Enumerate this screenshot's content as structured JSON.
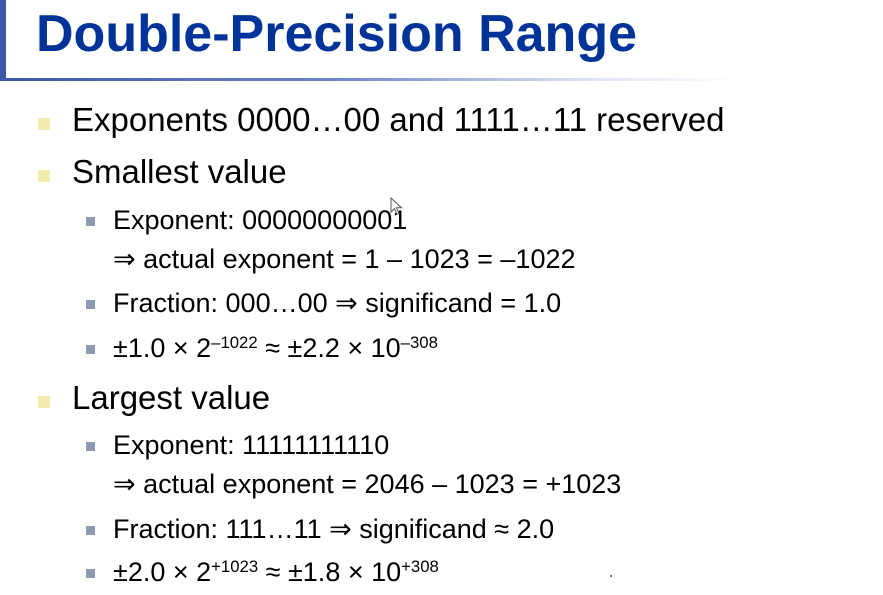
{
  "title": "Double-Precision Range",
  "bullets": {
    "reserved": "Exponents 0000…00 and 1111…11 reserved",
    "smallest": {
      "heading": "Smallest value",
      "exponent": "Exponent: 00000000001",
      "actual": "⇒ actual exponent = 1 – 1023 = –1022",
      "fraction": "Fraction: 000…00 ⇒ significand = 1.0",
      "value": {
        "a": "±1.0 × 2",
        "a_exp": "–1022",
        "b": " ≈ ±2.2 × 10",
        "b_exp": "–308"
      }
    },
    "largest": {
      "heading": "Largest value",
      "exponent": "Exponent: 11111111110",
      "actual": "⇒ actual exponent = 2046 – 1023 = +1023",
      "fraction": "Fraction: 111…11 ⇒ significand ≈ 2.0",
      "value": {
        "a": "±2.0 × 2",
        "a_exp": "+1023",
        "b": " ≈ ±1.8 × 10",
        "b_exp": "+308"
      }
    }
  },
  "colors": {
    "title": "#003399",
    "level1_bullet": "#f3ecae",
    "level2_bullet": "#8c9bb3",
    "accent_bar": "#3a57a8"
  },
  "icons": {
    "level1_bullet": "square-bullet-icon",
    "level2_bullet": "small-square-bullet-icon",
    "pointer": "mouse-cursor-icon"
  }
}
